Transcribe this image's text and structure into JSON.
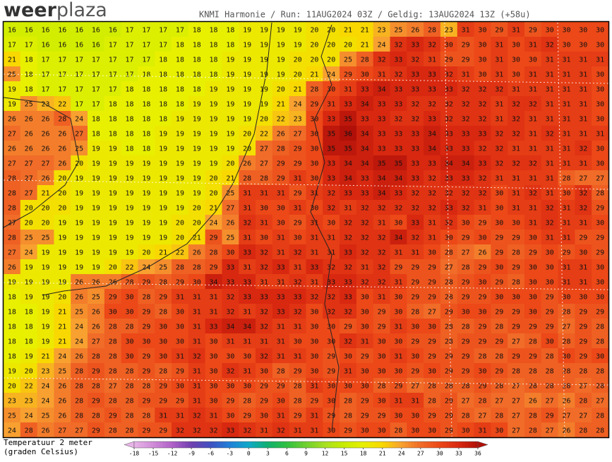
{
  "header": {
    "logo_weer": "weer",
    "logo_plaza": "plaza",
    "run_info": "KNMI Harmonie / Run: 11AUG2024 03Z / Geldig: 13AUG2024 13Z (+58u)"
  },
  "map": {
    "temperature_grid": [
      [
        16,
        16,
        16,
        16,
        16,
        16,
        16,
        17,
        17,
        17,
        17,
        18,
        18,
        18,
        19,
        19,
        19,
        19,
        20,
        20,
        21,
        21,
        23,
        25,
        26,
        28,
        23,
        31,
        30,
        29,
        31,
        29,
        30,
        30,
        30,
        30
      ],
      [
        17,
        17,
        16,
        16,
        16,
        16,
        17,
        17,
        17,
        17,
        18,
        18,
        18,
        18,
        19,
        19,
        19,
        19,
        20,
        20,
        20,
        21,
        24,
        32,
        33,
        32,
        30,
        29,
        30,
        31,
        30,
        31,
        32,
        30,
        30,
        30
      ],
      [
        21,
        18,
        17,
        17,
        17,
        17,
        17,
        17,
        17,
        18,
        18,
        18,
        18,
        19,
        19,
        19,
        19,
        20,
        20,
        20,
        25,
        28,
        32,
        33,
        32,
        31,
        29,
        29,
        30,
        31,
        30,
        30,
        31,
        31,
        31,
        31
      ],
      [
        25,
        18,
        17,
        17,
        17,
        17,
        17,
        17,
        18,
        18,
        18,
        18,
        18,
        19,
        19,
        19,
        19,
        20,
        21,
        24,
        29,
        30,
        31,
        32,
        33,
        33,
        32,
        31,
        30,
        31,
        30,
        31,
        31,
        31,
        31,
        30
      ],
      [
        19,
        18,
        17,
        17,
        17,
        17,
        17,
        18,
        18,
        18,
        18,
        18,
        19,
        19,
        19,
        19,
        20,
        21,
        28,
        30,
        31,
        33,
        34,
        33,
        33,
        33,
        33,
        32,
        32,
        32,
        31,
        31,
        31,
        31,
        31,
        30
      ],
      [
        19,
        25,
        23,
        22,
        17,
        17,
        18,
        18,
        18,
        18,
        18,
        19,
        19,
        19,
        19,
        19,
        21,
        24,
        29,
        31,
        33,
        34,
        33,
        33,
        32,
        32,
        32,
        32,
        32,
        31,
        32,
        32,
        31,
        31,
        31,
        30
      ],
      [
        26,
        26,
        26,
        28,
        24,
        18,
        18,
        18,
        18,
        18,
        19,
        19,
        19,
        19,
        19,
        20,
        22,
        23,
        30,
        33,
        35,
        33,
        33,
        32,
        32,
        33,
        32,
        32,
        32,
        31,
        32,
        31,
        31,
        31,
        31,
        30
      ],
      [
        27,
        26,
        26,
        26,
        27,
        18,
        18,
        18,
        18,
        19,
        19,
        19,
        19,
        19,
        20,
        22,
        26,
        27,
        30,
        35,
        36,
        34,
        33,
        33,
        33,
        34,
        33,
        33,
        33,
        32,
        32,
        31,
        32,
        31,
        31,
        31
      ],
      [
        26,
        26,
        26,
        26,
        25,
        19,
        19,
        18,
        18,
        19,
        19,
        19,
        19,
        19,
        20,
        27,
        28,
        29,
        30,
        35,
        35,
        34,
        33,
        33,
        33,
        34,
        33,
        33,
        32,
        32,
        31,
        31,
        31,
        31,
        32,
        30
      ],
      [
        27,
        27,
        27,
        26,
        20,
        19,
        19,
        19,
        19,
        19,
        19,
        19,
        19,
        20,
        26,
        27,
        29,
        29,
        30,
        33,
        34,
        34,
        35,
        35,
        33,
        33,
        34,
        34,
        33,
        32,
        32,
        32,
        31,
        31,
        31,
        30
      ],
      [
        28,
        27,
        26,
        20,
        19,
        19,
        19,
        19,
        19,
        19,
        19,
        19,
        20,
        21,
        28,
        28,
        29,
        31,
        30,
        33,
        34,
        33,
        34,
        34,
        33,
        32,
        33,
        33,
        32,
        31,
        31,
        31,
        31,
        28,
        27,
        27
      ],
      [
        28,
        27,
        21,
        20,
        19,
        19,
        19,
        19,
        19,
        19,
        19,
        19,
        20,
        25,
        31,
        31,
        31,
        29,
        31,
        32,
        33,
        33,
        34,
        33,
        32,
        32,
        32,
        32,
        32,
        30,
        31,
        32,
        31,
        30,
        32,
        28
      ],
      [
        28,
        20,
        20,
        20,
        19,
        19,
        19,
        19,
        19,
        19,
        19,
        20,
        21,
        27,
        31,
        30,
        30,
        31,
        30,
        32,
        31,
        32,
        32,
        32,
        32,
        32,
        33,
        32,
        31,
        30,
        31,
        31,
        32,
        31,
        32,
        29
      ],
      [
        27,
        20,
        20,
        19,
        19,
        19,
        19,
        19,
        19,
        19,
        20,
        20,
        24,
        26,
        32,
        31,
        30,
        29,
        31,
        30,
        32,
        32,
        31,
        30,
        33,
        31,
        32,
        30,
        29,
        30,
        30,
        31,
        32,
        31,
        31,
        30
      ],
      [
        28,
        25,
        25,
        19,
        19,
        19,
        19,
        19,
        19,
        19,
        20,
        21,
        29,
        25,
        31,
        30,
        31,
        30,
        31,
        31,
        32,
        32,
        32,
        34,
        32,
        31,
        30,
        29,
        30,
        29,
        29,
        30,
        31,
        31,
        29,
        29
      ],
      [
        27,
        24,
        19,
        19,
        19,
        19,
        19,
        19,
        20,
        21,
        22,
        26,
        28,
        30,
        33,
        32,
        31,
        32,
        31,
        31,
        33,
        32,
        32,
        31,
        31,
        30,
        28,
        27,
        26,
        29,
        28,
        29,
        30,
        29,
        30,
        29
      ],
      [
        26,
        19,
        19,
        19,
        19,
        19,
        20,
        22,
        24,
        25,
        28,
        28,
        29,
        33,
        31,
        32,
        33,
        31,
        33,
        32,
        32,
        31,
        32,
        29,
        29,
        29,
        27,
        28,
        29,
        30,
        29,
        30,
        30,
        31,
        31,
        30
      ],
      [
        19,
        19,
        19,
        19,
        26,
        26,
        26,
        28,
        29,
        28,
        29,
        30,
        34,
        33,
        33,
        31,
        31,
        32,
        31,
        33,
        33,
        32,
        32,
        31,
        29,
        29,
        28,
        29,
        30,
        29,
        28,
        30,
        30,
        31,
        31,
        30
      ],
      [
        18,
        19,
        19,
        20,
        26,
        25,
        29,
        30,
        28,
        29,
        31,
        31,
        31,
        32,
        33,
        33,
        33,
        33,
        32,
        32,
        33,
        30,
        31,
        30,
        29,
        29,
        28,
        29,
        29,
        30,
        30,
        30,
        29,
        30,
        30,
        30
      ],
      [
        18,
        18,
        19,
        21,
        25,
        26,
        30,
        30,
        29,
        28,
        30,
        31,
        31,
        32,
        31,
        32,
        33,
        32,
        30,
        32,
        32,
        30,
        29,
        30,
        28,
        27,
        29,
        30,
        30,
        29,
        29,
        30,
        29,
        28,
        29,
        29
      ],
      [
        18,
        18,
        19,
        21,
        24,
        26,
        28,
        28,
        29,
        30,
        30,
        31,
        33,
        34,
        34,
        32,
        31,
        31,
        30,
        30,
        29,
        30,
        29,
        31,
        30,
        30,
        28,
        28,
        29,
        28,
        29,
        29,
        29,
        27,
        29,
        28
      ],
      [
        18,
        18,
        19,
        21,
        24,
        27,
        28,
        30,
        30,
        30,
        30,
        31,
        30,
        31,
        31,
        31,
        31,
        30,
        30,
        30,
        32,
        31,
        30,
        30,
        29,
        29,
        28,
        29,
        29,
        29,
        27,
        28,
        30,
        28,
        29,
        28
      ],
      [
        18,
        19,
        21,
        24,
        26,
        28,
        28,
        30,
        29,
        30,
        31,
        32,
        30,
        30,
        30,
        32,
        31,
        31,
        30,
        29,
        30,
        29,
        30,
        31,
        30,
        29,
        29,
        29,
        28,
        28,
        29,
        29,
        28,
        30,
        29,
        30
      ],
      [
        19,
        20,
        23,
        25,
        28,
        29,
        28,
        28,
        29,
        28,
        29,
        31,
        30,
        32,
        31,
        30,
        28,
        29,
        30,
        29,
        31,
        30,
        30,
        30,
        29,
        30,
        29,
        29,
        30,
        29,
        28,
        28,
        28,
        28,
        28,
        28
      ],
      [
        20,
        22,
        24,
        26,
        28,
        28,
        27,
        28,
        28,
        29,
        30,
        31,
        30,
        30,
        30,
        29,
        29,
        28,
        31,
        30,
        30,
        30,
        28,
        29,
        27,
        28,
        28,
        28,
        29,
        28,
        27,
        28,
        28,
        28,
        27,
        28
      ],
      [
        23,
        23,
        24,
        26,
        28,
        29,
        28,
        28,
        29,
        29,
        29,
        31,
        30,
        29,
        28,
        29,
        30,
        28,
        29,
        30,
        28,
        29,
        30,
        31,
        31,
        28,
        29,
        27,
        28,
        27,
        27,
        26,
        27,
        26,
        28,
        27
      ],
      [
        25,
        24,
        25,
        26,
        28,
        28,
        29,
        28,
        28,
        31,
        31,
        32,
        31,
        30,
        29,
        30,
        31,
        29,
        31,
        29,
        28,
        29,
        29,
        30,
        30,
        29,
        29,
        28,
        27,
        28,
        27,
        28,
        29,
        27,
        27,
        28
      ],
      [
        24,
        28,
        26,
        27,
        27,
        29,
        28,
        28,
        29,
        29,
        32,
        32,
        32,
        33,
        32,
        31,
        32,
        31,
        31,
        30,
        29,
        30,
        30,
        28,
        30,
        30,
        29,
        30,
        31,
        30,
        27,
        28,
        27,
        26,
        28,
        28
      ]
    ]
  },
  "legend": {
    "title_line1": "Temperatuur 2 meter",
    "title_line2": "(graden Celsius)",
    "ticks": [
      -18,
      -15,
      -12,
      -9,
      -6,
      -3,
      0,
      3,
      6,
      9,
      12,
      15,
      18,
      21,
      24,
      27,
      30,
      33,
      36
    ],
    "colors": [
      "#e8b4e8",
      "#d08cd8",
      "#b060c8",
      "#7040b0",
      "#4050c0",
      "#2080d8",
      "#10a8c8",
      "#10b070",
      "#30c040",
      "#70d030",
      "#a8e020",
      "#c8ec00",
      "#e8f000",
      "#f8d800",
      "#f8a030",
      "#f06c28",
      "#ec4818",
      "#d82810",
      "#b01008"
    ]
  }
}
